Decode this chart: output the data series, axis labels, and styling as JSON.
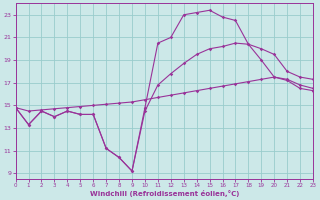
{
  "bg_color": "#cce8e8",
  "grid_color": "#99cccc",
  "line_color": "#993399",
  "xlabel": "Windchill (Refroidissement éolien,°C)",
  "xlim": [
    0,
    23
  ],
  "ylim": [
    8.5,
    24.0
  ],
  "yticks": [
    9,
    11,
    13,
    15,
    17,
    19,
    21,
    23
  ],
  "xticks": [
    0,
    1,
    2,
    3,
    4,
    5,
    6,
    7,
    8,
    9,
    10,
    11,
    12,
    13,
    14,
    15,
    16,
    17,
    18,
    19,
    20,
    21,
    22,
    23
  ],
  "curve1_x": [
    0,
    1,
    2,
    3,
    4,
    5,
    6,
    7,
    8,
    9,
    10,
    11,
    12,
    13,
    14,
    15,
    16,
    17,
    18,
    19,
    20,
    21,
    22,
    23
  ],
  "curve1_y": [
    14.8,
    13.3,
    14.5,
    14.0,
    14.5,
    14.2,
    14.2,
    11.2,
    10.4,
    9.2,
    14.8,
    20.5,
    21.0,
    23.0,
    23.2,
    23.4,
    22.8,
    22.5,
    20.4,
    19.0,
    17.5,
    17.2,
    16.5,
    16.3
  ],
  "curve2_x": [
    0,
    1,
    2,
    3,
    4,
    5,
    6,
    7,
    8,
    9,
    10,
    11,
    12,
    13,
    14,
    15,
    16,
    17,
    18,
    19,
    20,
    21,
    22,
    23
  ],
  "curve2_y": [
    14.8,
    13.3,
    14.5,
    14.0,
    14.5,
    14.2,
    14.2,
    11.2,
    10.4,
    9.2,
    14.5,
    16.8,
    17.8,
    18.7,
    19.5,
    20.0,
    20.2,
    20.5,
    20.4,
    20.0,
    19.5,
    18.0,
    17.5,
    17.3
  ],
  "curve3_x": [
    0,
    1,
    2,
    3,
    4,
    5,
    6,
    7,
    8,
    9,
    10,
    11,
    12,
    13,
    14,
    15,
    16,
    17,
    18,
    19,
    20,
    21,
    22,
    23
  ],
  "curve3_y": [
    14.8,
    14.5,
    14.6,
    14.7,
    14.8,
    14.9,
    15.0,
    15.1,
    15.2,
    15.3,
    15.5,
    15.7,
    15.9,
    16.1,
    16.3,
    16.5,
    16.7,
    16.9,
    17.1,
    17.3,
    17.5,
    17.3,
    16.8,
    16.5
  ]
}
